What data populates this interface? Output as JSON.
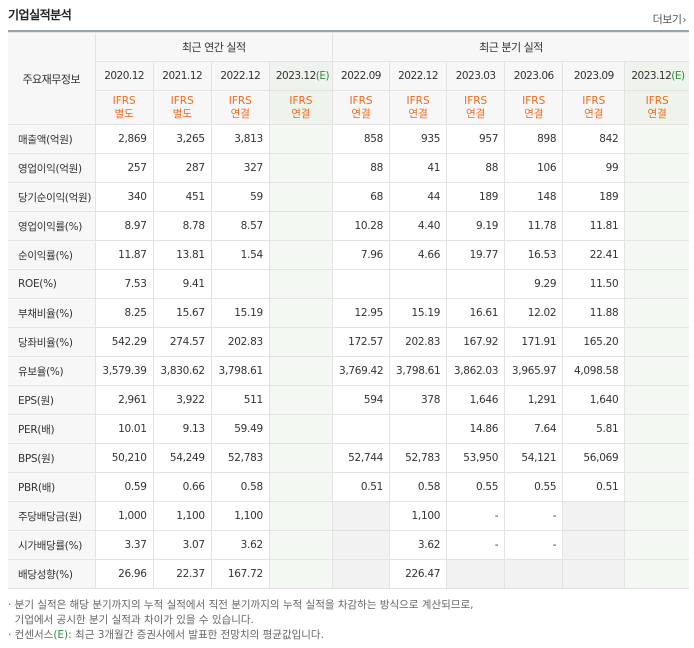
{
  "title": "기업실적분석",
  "more_label": "더보기",
  "header": {
    "row_header": "주요재무정보",
    "annual_group": "최근 연간 실적",
    "quarter_group": "최근 분기 실적",
    "annual_periods": [
      "2020.12",
      "2021.12",
      "2022.12",
      "2023.12"
    ],
    "annual_estimate_mark": "(E)",
    "quarter_periods": [
      "2022.09",
      "2022.12",
      "2023.03",
      "2023.06",
      "2023.09",
      "2023.12"
    ],
    "quarter_estimate_mark": "(E)",
    "annual_ifrs": [
      [
        "IFRS",
        "별도"
      ],
      [
        "IFRS",
        "별도"
      ],
      [
        "IFRS",
        "연결"
      ],
      [
        "IFRS",
        "연결"
      ]
    ],
    "quarter_ifrs": [
      [
        "IFRS",
        "연결"
      ],
      [
        "IFRS",
        "연결"
      ],
      [
        "IFRS",
        "연결"
      ],
      [
        "IFRS",
        "연결"
      ],
      [
        "IFRS",
        "연결"
      ],
      [
        "IFRS",
        "연결"
      ]
    ]
  },
  "rows": [
    {
      "label": "매출액(억원)",
      "annual": [
        "2,869",
        "3,265",
        "3,813",
        ""
      ],
      "quarter": [
        "858",
        "935",
        "957",
        "898",
        "842",
        ""
      ]
    },
    {
      "label": "영업이익(억원)",
      "annual": [
        "257",
        "287",
        "327",
        ""
      ],
      "quarter": [
        "88",
        "41",
        "88",
        "106",
        "99",
        ""
      ]
    },
    {
      "label": "당기순이익(억원)",
      "annual": [
        "340",
        "451",
        "59",
        ""
      ],
      "quarter": [
        "68",
        "44",
        "189",
        "148",
        "189",
        ""
      ]
    },
    {
      "label": "영업이익률(%)",
      "annual": [
        "8.97",
        "8.78",
        "8.57",
        ""
      ],
      "quarter": [
        "10.28",
        "4.40",
        "9.19",
        "11.78",
        "11.81",
        ""
      ]
    },
    {
      "label": "순이익률(%)",
      "annual": [
        "11.87",
        "13.81",
        "1.54",
        ""
      ],
      "quarter": [
        "7.96",
        "4.66",
        "19.77",
        "16.53",
        "22.41",
        ""
      ]
    },
    {
      "label": "ROE(%)",
      "annual": [
        "7.53",
        "9.41",
        "",
        ""
      ],
      "quarter": [
        "",
        "",
        "",
        "9.29",
        "11.50",
        ""
      ]
    },
    {
      "label": "부채비율(%)",
      "annual": [
        "8.25",
        "15.67",
        "15.19",
        ""
      ],
      "quarter": [
        "12.95",
        "15.19",
        "16.61",
        "12.02",
        "11.88",
        ""
      ]
    },
    {
      "label": "당좌비율(%)",
      "annual": [
        "542.29",
        "274.57",
        "202.83",
        ""
      ],
      "quarter": [
        "172.57",
        "202.83",
        "167.92",
        "171.91",
        "165.20",
        ""
      ]
    },
    {
      "label": "유보율(%)",
      "annual": [
        "3,579.39",
        "3,830.62",
        "3,798.61",
        ""
      ],
      "quarter": [
        "3,769.42",
        "3,798.61",
        "3,862.03",
        "3,965.97",
        "4,098.58",
        ""
      ]
    },
    {
      "label": "EPS(원)",
      "annual": [
        "2,961",
        "3,922",
        "511",
        ""
      ],
      "quarter": [
        "594",
        "378",
        "1,646",
        "1,291",
        "1,640",
        ""
      ]
    },
    {
      "label": "PER(배)",
      "annual": [
        "10.01",
        "9.13",
        "59.49",
        ""
      ],
      "quarter": [
        "",
        "",
        "14.86",
        "7.64",
        "5.81",
        ""
      ]
    },
    {
      "label": "BPS(원)",
      "annual": [
        "50,210",
        "54,249",
        "52,783",
        ""
      ],
      "quarter": [
        "52,744",
        "52,783",
        "53,950",
        "54,121",
        "56,069",
        ""
      ]
    },
    {
      "label": "PBR(배)",
      "annual": [
        "0.59",
        "0.66",
        "0.58",
        ""
      ],
      "quarter": [
        "0.51",
        "0.58",
        "0.55",
        "0.55",
        "0.51",
        ""
      ]
    },
    {
      "label": "주당배당금(원)",
      "annual": [
        "1,000",
        "1,100",
        "1,100",
        ""
      ],
      "quarter": [
        "",
        "1,100",
        "-",
        "-",
        "",
        ""
      ]
    },
    {
      "label": "시가배당률(%)",
      "annual": [
        "3.37",
        "3.07",
        "3.62",
        ""
      ],
      "quarter": [
        "",
        "3.62",
        "-",
        "-",
        "",
        ""
      ]
    },
    {
      "label": "배당성향(%)",
      "annual": [
        "26.96",
        "22.37",
        "167.72",
        ""
      ],
      "quarter": [
        "",
        "226.47",
        "",
        "",
        "",
        ""
      ]
    }
  ],
  "notes": [
    "· 분기 실적은 해당 분기까지의 누적 실적에서 직전 분기까지의 누적 실적을 차감하는 방식으로 계산되므로,",
    "  기업에서 공시한 분기 실적과 차이가 있을 수 있습니다.",
    "· 컨센서스",
    "(E)",
    ": 최근 3개월간 증권사에서 발표한 전망치의 평균값입니다."
  ],
  "colors": {
    "ifrs_orange": "#ee6a1f",
    "estimate_green": "#2f8e3f",
    "estimate_bg": "#f4f8f2"
  }
}
